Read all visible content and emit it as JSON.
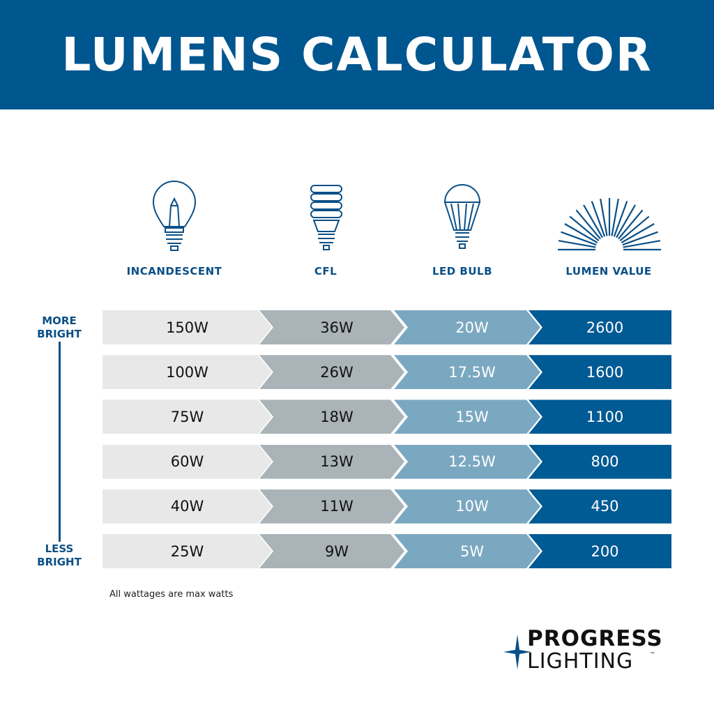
{
  "title": "LUMENS CALCULATOR",
  "chart_data": {
    "type": "table",
    "columns": [
      "INCANDESCENT",
      "CFL",
      "LED BULB",
      "LUMEN VALUE"
    ],
    "rows": [
      [
        "150W",
        "36W",
        "20W",
        "2600"
      ],
      [
        "100W",
        "26W",
        "17.5W",
        "1600"
      ],
      [
        "75W",
        "18W",
        "15W",
        "1100"
      ],
      [
        "60W",
        "13W",
        "12.5W",
        "800"
      ],
      [
        "40W",
        "11W",
        "10W",
        "450"
      ],
      [
        "25W",
        "9W",
        "5W",
        "200"
      ]
    ],
    "column_colors": [
      "#e8e8e8",
      "#a9b3b8",
      "#7ba8c1",
      "#005a94"
    ]
  },
  "scale": {
    "top": "MORE BRIGHT",
    "bottom": "LESS BRIGHT"
  },
  "icons": [
    "incandescent-bulb-icon",
    "cfl-bulb-icon",
    "led-bulb-icon",
    "lumen-rays-icon"
  ],
  "note": "All wattages are max watts",
  "logo": {
    "line1": "PROGRESS",
    "line2": "LIGHTING",
    "tm": "™"
  },
  "colors": {
    "brand": "#00568f"
  }
}
